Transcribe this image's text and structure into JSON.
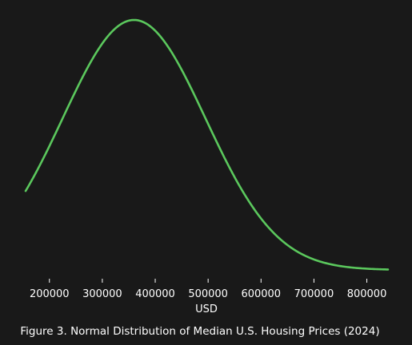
{
  "chart_data": {
    "type": "line",
    "title": "",
    "caption": "Figure 3. Normal Distribution of Median U.S. Housing Prices (2024)",
    "xlabel": "USD",
    "ylabel": "",
    "xlim": [
      155000,
      840000
    ],
    "ticks": [
      "200000",
      "300000",
      "400000",
      "500000",
      "600000",
      "700000",
      "800000"
    ],
    "tick_values": [
      200000,
      300000,
      400000,
      500000,
      600000,
      700000,
      800000
    ],
    "y_axis_visible": false,
    "grid": false,
    "legend": "none",
    "series": [
      {
        "distribution": "normal",
        "mean": 360000,
        "std_dev": 135000,
        "x_range": [
          155000,
          840000
        ],
        "color": "#5bc85d"
      }
    ]
  },
  "colors": {
    "background": "#191919",
    "text": "#ffffff",
    "line": "#5bc85d",
    "tick": "#ffffff"
  }
}
